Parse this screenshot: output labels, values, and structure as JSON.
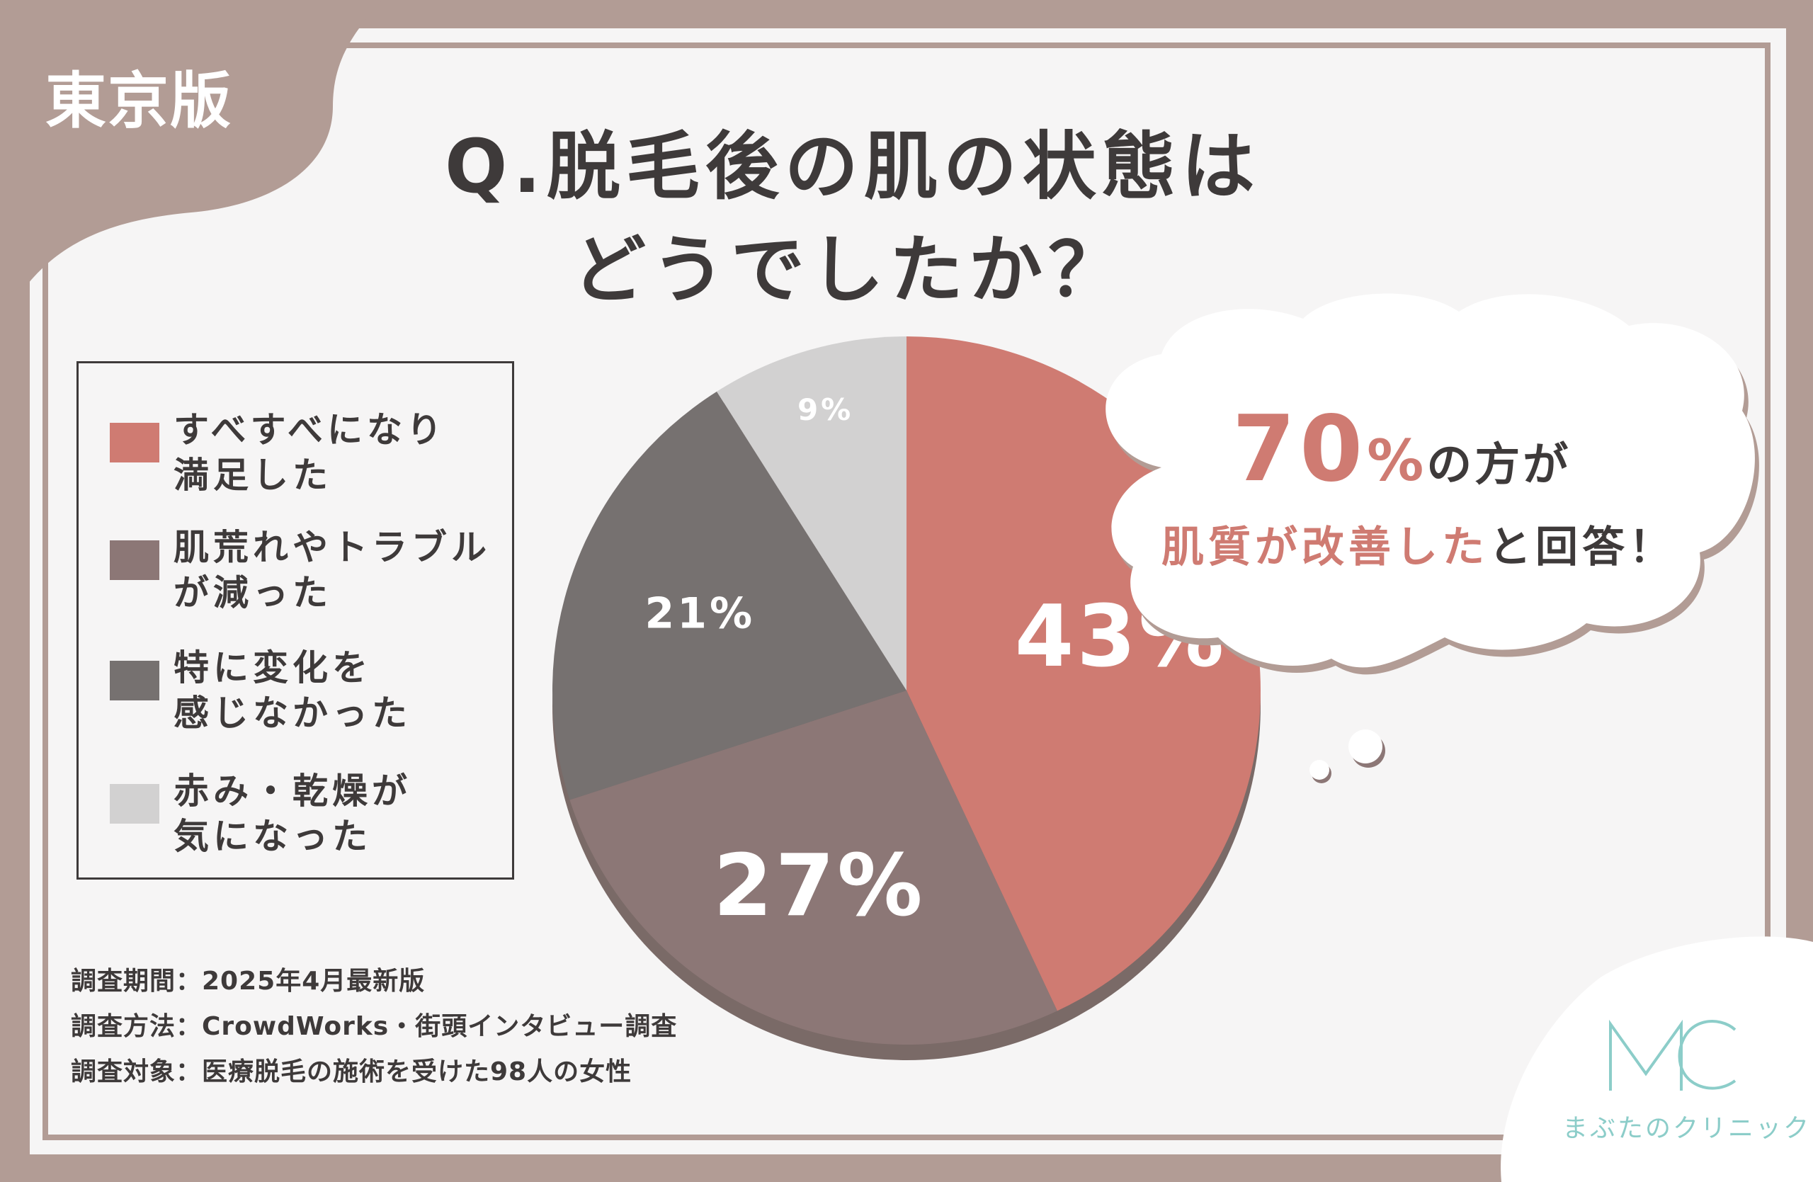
{
  "region_tag": "東京版",
  "title": {
    "line1": "Q.脱毛後の肌の状態は",
    "line2": "どうでしたか？"
  },
  "chart_data": {
    "type": "pie",
    "categories": [
      "すべすべになり満足した",
      "肌荒れやトラブルが減った",
      "特に変化を感じなかった",
      "赤み・乾燥が気になった"
    ],
    "values": [
      43,
      27,
      21,
      9
    ],
    "value_labels": [
      "43%",
      "27%",
      "21%",
      "9%"
    ],
    "colors": [
      "#cf7b72",
      "#8c7776",
      "#767170",
      "#d2d1d1"
    ],
    "legend_placement": "left"
  },
  "legend": {
    "items": [
      {
        "line1": "すべすべになり",
        "line2": "満足した",
        "color": "#cf7b72"
      },
      {
        "line1": "肌荒れやトラブル",
        "line2": "が減った",
        "color": "#8c7776"
      },
      {
        "line1": "特に変化を",
        "line2": "感じなかった",
        "color": "#767170"
      },
      {
        "line1": "赤み・乾燥が",
        "line2": "気になった",
        "color": "#d2d1d1"
      }
    ]
  },
  "callout": {
    "percent": "70",
    "percent_sign": "%",
    "line1_rest": "の方が",
    "line2_highlight": "肌質が改善した",
    "line2_rest": "と回答！"
  },
  "survey": {
    "period": "調査期間：2025年4月最新版",
    "method": "調査方法：CrowdWorks・街頭インタビュー調査",
    "target": "調査対象：医療脱毛の施術を受けた98人の女性"
  },
  "logo": {
    "letters": "MC",
    "name": "まぶたのクリニック"
  }
}
